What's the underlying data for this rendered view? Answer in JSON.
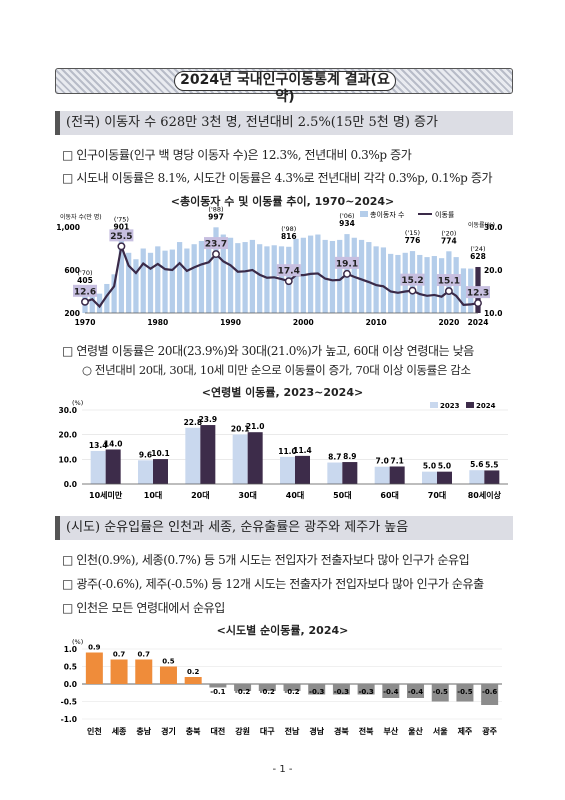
{
  "title": "2024년 국내인구이동통계 결과(요약)",
  "section1": {
    "heading": "(전국) 이동자 수 628만 3천 명, 전년대비 2.5%(15만 5천 명) 증가",
    "bullets": [
      "□ 인구이동률(인구 백 명당 이동자 수)은 12.3%, 전년대비 0.3%p 증가",
      "□ 시도내 이동률은 8.1%, 시도간 이동률은 4.3%로 전년대비 각각 0.3%p, 0.1%p 증가"
    ]
  },
  "section2": {
    "bullet": "□ 연령별 이동률은 20대(23.9%)와 30대(21.0%)가 높고, 60대 이상 연령대는 낮음",
    "sub_bullet": "○ 전년대비 20대, 30대, 10세 미만 순으로 이동률이 증가, 70대 이상 이동률은 감소"
  },
  "section3": {
    "heading": "(시도) 순유입률은 인천과 세종, 순유출률은 광주와 제주가 높음",
    "bullets": [
      "□ 인천(0.9%), 세종(0.7%) 등 5개 시도는 전입자가 전출자보다 많아 인구가 순유입",
      "□ 광주(-0.6%), 제주(-0.5%) 등 12개 시도는 전출자가 전입자보다 많아 인구가 순유출",
      "□ 인천은 모든 연령대에서 순유입"
    ]
  },
  "page_number": "- 1 -",
  "colors": {
    "bar_light": "#b4cdea",
    "line_dark": "#3a2a48",
    "bar_2024": "#3d2c4a",
    "bar_2023": "#c9d8ee",
    "inflow": "#ef8c3a",
    "outflow": "#8c8c8c",
    "label_box": "#c7bfe0"
  },
  "chart_data": [
    {
      "type": "bar",
      "title": "<총이동자 수 및 이동률 추이, 1970~2024>",
      "y_left_label": "이동자 수(만 명)",
      "y_right_label": "이동률(%)",
      "y_left_ticks": [
        "200",
        "600",
        "1,000"
      ],
      "y_right_ticks": [
        "10.0",
        "20.0",
        "30.0"
      ],
      "ylim_left": [
        200,
        1000
      ],
      "ylim_right": [
        10,
        30
      ],
      "x_ticks": [
        "1970",
        "1980",
        "1990",
        "2000",
        "2010",
        "2020",
        "2024"
      ],
      "legend": [
        "총이동자 수",
        "이동률"
      ],
      "x": [
        1970,
        1971,
        1972,
        1973,
        1974,
        1975,
        1976,
        1977,
        1978,
        1979,
        1980,
        1981,
        1982,
        1983,
        1984,
        1985,
        1986,
        1987,
        1988,
        1989,
        1990,
        1991,
        1992,
        1993,
        1994,
        1995,
        1996,
        1997,
        1998,
        1999,
        2000,
        2001,
        2002,
        2003,
        2004,
        2005,
        2006,
        2007,
        2008,
        2009,
        2010,
        2011,
        2012,
        2013,
        2014,
        2015,
        2016,
        2017,
        2018,
        2019,
        2020,
        2021,
        2022,
        2023,
        2024
      ],
      "movers": [
        405,
        430,
        380,
        470,
        560,
        901,
        760,
        700,
        800,
        760,
        820,
        780,
        790,
        860,
        800,
        840,
        870,
        900,
        997,
        930,
        900,
        850,
        860,
        880,
        840,
        820,
        830,
        820,
        816,
        890,
        900,
        920,
        930,
        880,
        870,
        880,
        934,
        900,
        880,
        860,
        820,
        810,
        750,
        740,
        760,
        776,
        740,
        720,
        730,
        710,
        774,
        720,
        615,
        613,
        628
      ],
      "rate": [
        12.6,
        13.2,
        11.5,
        14.0,
        16.2,
        25.5,
        21.0,
        19.3,
        21.5,
        20.3,
        21.4,
        20.2,
        20.0,
        21.6,
        19.8,
        20.6,
        21.3,
        21.8,
        23.7,
        22.0,
        21.1,
        19.6,
        19.7,
        20.0,
        18.9,
        18.2,
        18.3,
        17.9,
        17.4,
        18.8,
        18.8,
        19.1,
        19.2,
        18.0,
        17.6,
        17.7,
        19.1,
        18.4,
        17.8,
        17.2,
        16.5,
        16.2,
        15.0,
        14.7,
        15.0,
        15.2,
        14.4,
        14.0,
        14.2,
        13.8,
        15.1,
        14.0,
        11.9,
        12.0,
        12.3
      ],
      "value_labels": [
        {
          "year": 1970,
          "count_label": "('70)",
          "count": "405",
          "rate": "12.6"
        },
        {
          "year": 1975,
          "count_label": "('75)",
          "count": "901",
          "rate": "25.5"
        },
        {
          "year": 1988,
          "count_label": "('88)",
          "count": "997",
          "rate": "23.7"
        },
        {
          "year": 1998,
          "count_label": "('98)",
          "count": "816",
          "rate": "17.4"
        },
        {
          "year": 2006,
          "count_label": "('06)",
          "count": "934",
          "rate": "19.1"
        },
        {
          "year": 2015,
          "count_label": "('15)",
          "count": "776",
          "rate": "15.2"
        },
        {
          "year": 2020,
          "count_label": "('20)",
          "count": "774",
          "rate": "15.1"
        },
        {
          "year": 2024,
          "count_label": "('24)",
          "count": "628",
          "rate": "12.3"
        }
      ]
    },
    {
      "type": "bar",
      "title": "<연령별 이동률, 2023~2024>",
      "ylabel": "(%)",
      "ylim": [
        0,
        30
      ],
      "y_ticks": [
        "0.0",
        "10.0",
        "20.0",
        "30.0"
      ],
      "categories": [
        "10세미만",
        "10대",
        "20대",
        "30대",
        "40대",
        "50대",
        "60대",
        "70대",
        "80세이상"
      ],
      "series": [
        {
          "name": "2023",
          "values": [
            13.4,
            9.6,
            22.8,
            20.1,
            11.0,
            8.7,
            7.0,
            5.0,
            5.6
          ],
          "labels": [
            "13.4",
            "9.6",
            "22.8",
            "20.1",
            "11.0",
            "8.7",
            "7.0",
            "5.0",
            "5.6"
          ]
        },
        {
          "name": "2024",
          "values": [
            14.0,
            10.1,
            23.9,
            21.0,
            11.4,
            8.9,
            7.1,
            5.0,
            5.5
          ],
          "labels": [
            "14.0",
            "10.1",
            "23.9",
            "21.0",
            "11.4",
            "8.9",
            "7.1",
            "5.0",
            "5.5"
          ]
        }
      ]
    },
    {
      "type": "bar",
      "title": "<시도별 순이동률, 2024>",
      "ylabel": "(%)",
      "ylim": [
        -1.0,
        1.0
      ],
      "y_ticks": [
        "-1.0",
        "-0.5",
        "0.0",
        "0.5",
        "1.0"
      ],
      "categories": [
        "인천",
        "세종",
        "충남",
        "경기",
        "충북",
        "대전",
        "강원",
        "대구",
        "전남",
        "경남",
        "경북",
        "전북",
        "부산",
        "울산",
        "서울",
        "제주",
        "광주"
      ],
      "values": [
        0.9,
        0.7,
        0.7,
        0.5,
        0.2,
        -0.1,
        -0.2,
        -0.2,
        -0.2,
        -0.3,
        -0.3,
        -0.3,
        -0.4,
        -0.4,
        -0.5,
        -0.5,
        -0.6
      ],
      "labels": [
        "0.9",
        "0.7",
        "0.7",
        "0.5",
        "0.2",
        "-0.1",
        "-0.2",
        "-0.2",
        "-0.2",
        "-0.3",
        "-0.3",
        "-0.3",
        "-0.4",
        "-0.4",
        "-0.5",
        "-0.5",
        "-0.6"
      ]
    }
  ]
}
